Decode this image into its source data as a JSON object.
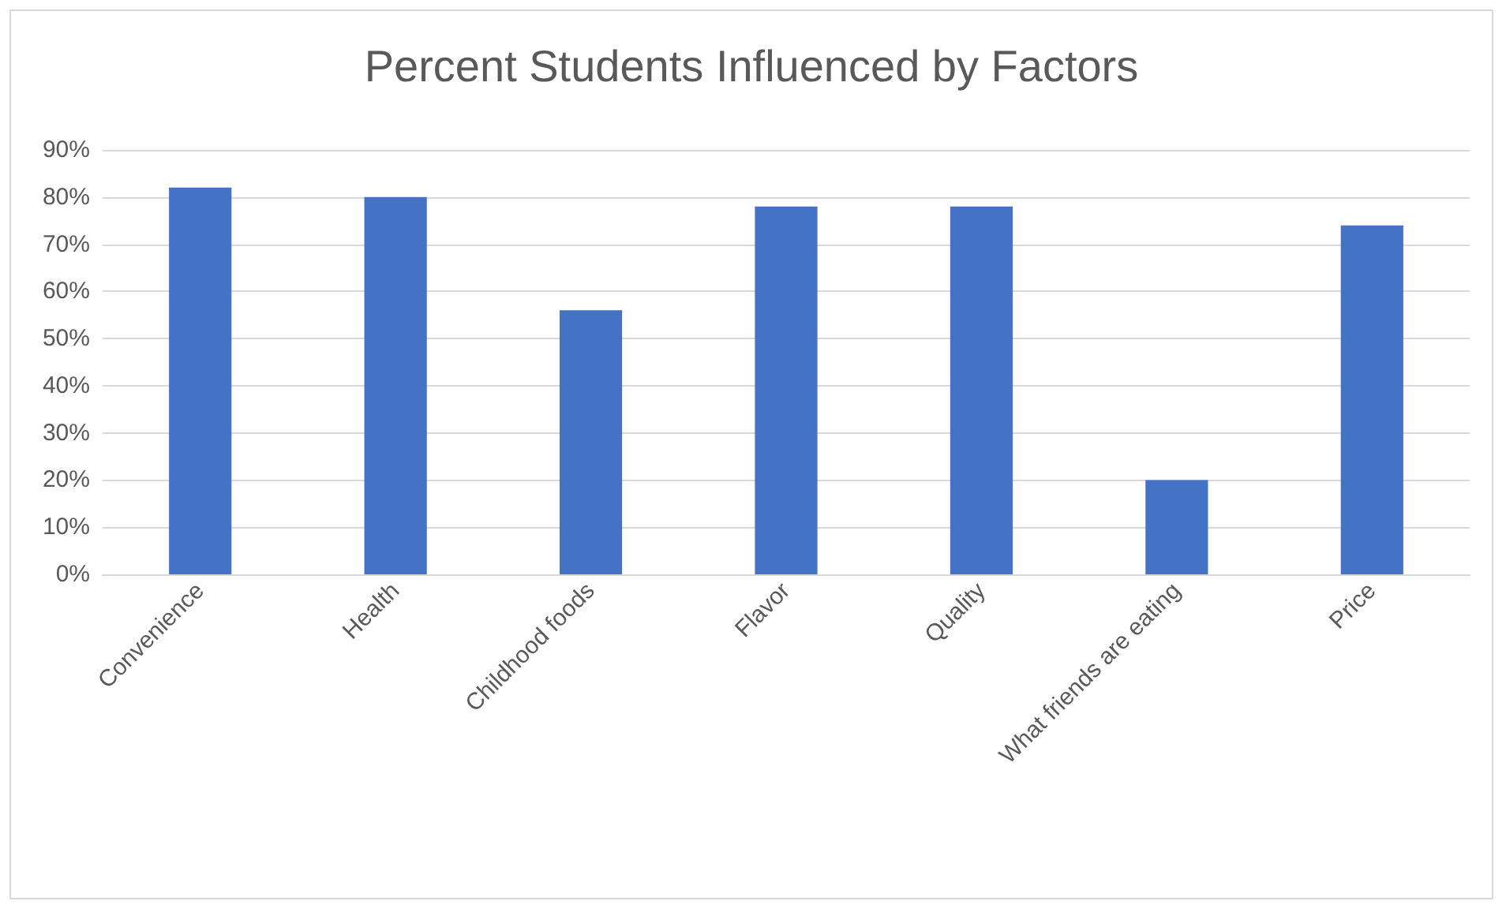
{
  "chart_data": {
    "type": "bar",
    "title": "Percent Students Influenced by Factors",
    "categories": [
      "Convenience",
      "Health",
      "Childhood foods",
      "Flavor",
      "Quality",
      "What friends are eating",
      "Price"
    ],
    "values": [
      82,
      80,
      56,
      78,
      78,
      20,
      74
    ],
    "color": "#4472c4",
    "ylim": [
      0,
      90
    ],
    "yticks": [
      {
        "value": 0,
        "label": "0%"
      },
      {
        "value": 10,
        "label": "10%"
      },
      {
        "value": 20,
        "label": "20%"
      },
      {
        "value": 30,
        "label": "30%"
      },
      {
        "value": 40,
        "label": "40%"
      },
      {
        "value": 50,
        "label": "50%"
      },
      {
        "value": 60,
        "label": "60%"
      },
      {
        "value": 70,
        "label": "70%"
      },
      {
        "value": 80,
        "label": "80%"
      },
      {
        "value": 90,
        "label": "90%"
      }
    ],
    "grid": true
  }
}
